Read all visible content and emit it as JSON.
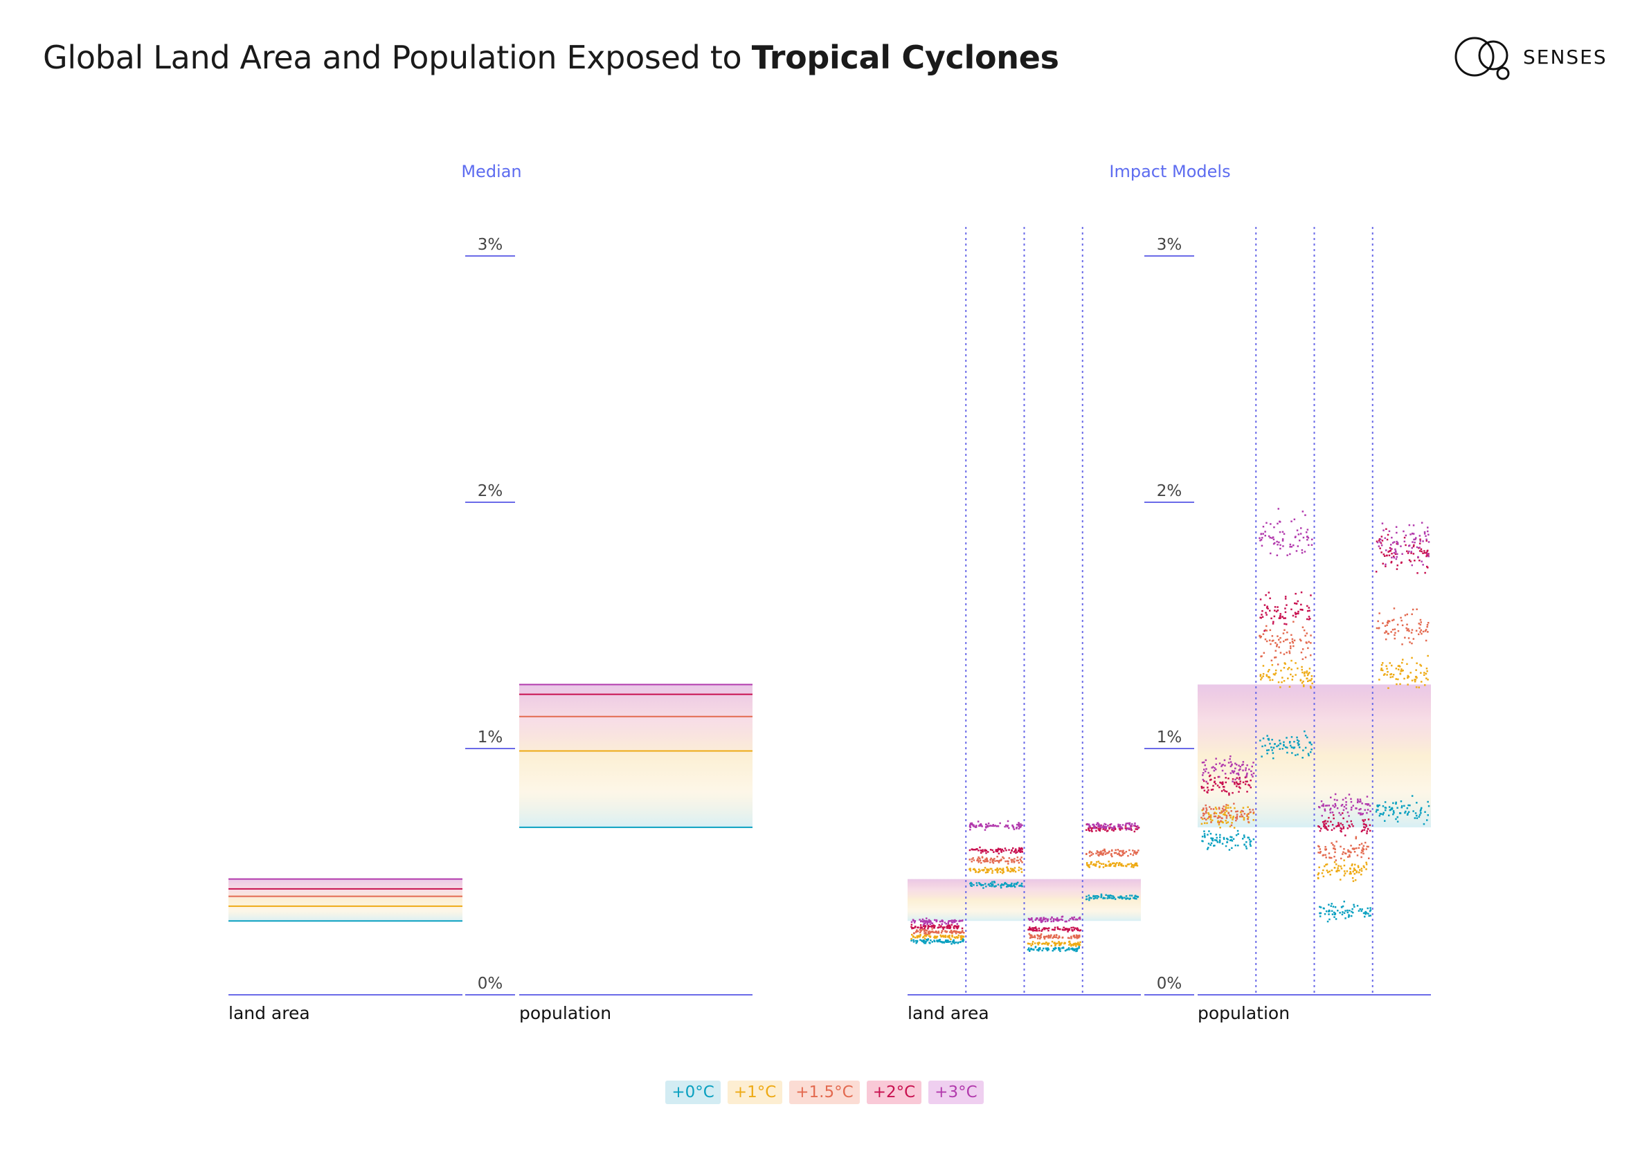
{
  "title": {
    "regular": "Global Land Area and Population Exposed to ",
    "bold": "Tropical Cyclones"
  },
  "brand": "SENSES",
  "chart_data": [
    {
      "type": "bar",
      "title": "Median",
      "y_tick_labels": [
        "0%",
        "1%",
        "2%",
        "3%"
      ],
      "ylim": [
        0,
        3
      ],
      "categories": [
        "land area",
        "population"
      ],
      "series": [
        {
          "name": "+0°C",
          "values": [
            0.3,
            0.68
          ]
        },
        {
          "name": "+1°C",
          "values": [
            0.36,
            0.99
          ]
        },
        {
          "name": "+1.5°C",
          "values": [
            0.4,
            1.13
          ]
        },
        {
          "name": "+2°C",
          "values": [
            0.43,
            1.22
          ]
        },
        {
          "name": "+3°C",
          "values": [
            0.47,
            1.26
          ]
        }
      ]
    },
    {
      "type": "scatter",
      "title": "Impact Models",
      "y_tick_labels": [
        "0%",
        "1%",
        "2%",
        "3%"
      ],
      "ylim": [
        0,
        3
      ],
      "categories": [
        "land area",
        "population"
      ],
      "models_per_category": 4,
      "median_band": {
        "land area": [
          0.3,
          0.47
        ],
        "population": [
          0.68,
          1.26
        ]
      },
      "series": [
        {
          "name": "+0°C",
          "values": {
            "land area": [
              0.22,
              0.45,
              0.19,
              0.4
            ],
            "population": [
              0.63,
              1.01,
              0.34,
              0.75
            ]
          }
        },
        {
          "name": "+1°C",
          "values": {
            "land area": [
              0.24,
              0.51,
              0.21,
              0.53
            ],
            "population": [
              0.73,
              1.3,
              0.51,
              1.31
            ]
          }
        },
        {
          "name": "+1.5°C",
          "values": {
            "land area": [
              0.26,
              0.55,
              0.24,
              0.58
            ],
            "population": [
              0.74,
              1.43,
              0.59,
              1.5
            ]
          }
        },
        {
          "name": "+2°C",
          "values": {
            "land area": [
              0.28,
              0.59,
              0.27,
              0.68
            ],
            "population": [
              0.86,
              1.56,
              0.69,
              1.8
            ]
          }
        },
        {
          "name": "+3°C",
          "values": {
            "land area": [
              0.3,
              0.69,
              0.31,
              0.69
            ],
            "population": [
              0.92,
              1.86,
              0.77,
              1.84
            ]
          }
        }
      ]
    }
  ],
  "legend": [
    "+0°C",
    "+1°C",
    "+1.5°C",
    "+2°C",
    "+3°C"
  ],
  "colors": {
    "+0°C": "#0aa0c0",
    "+1°C": "#eeaa14",
    "+1.5°C": "#e36a50",
    "+2°C": "#c8104f",
    "+3°C": "#b23aad",
    "axis": "#6a6ae8"
  },
  "legend_bg": [
    "#d3ecf3",
    "#fdeed2",
    "#fbdcd4",
    "#f9c9d7",
    "#efcff0"
  ]
}
